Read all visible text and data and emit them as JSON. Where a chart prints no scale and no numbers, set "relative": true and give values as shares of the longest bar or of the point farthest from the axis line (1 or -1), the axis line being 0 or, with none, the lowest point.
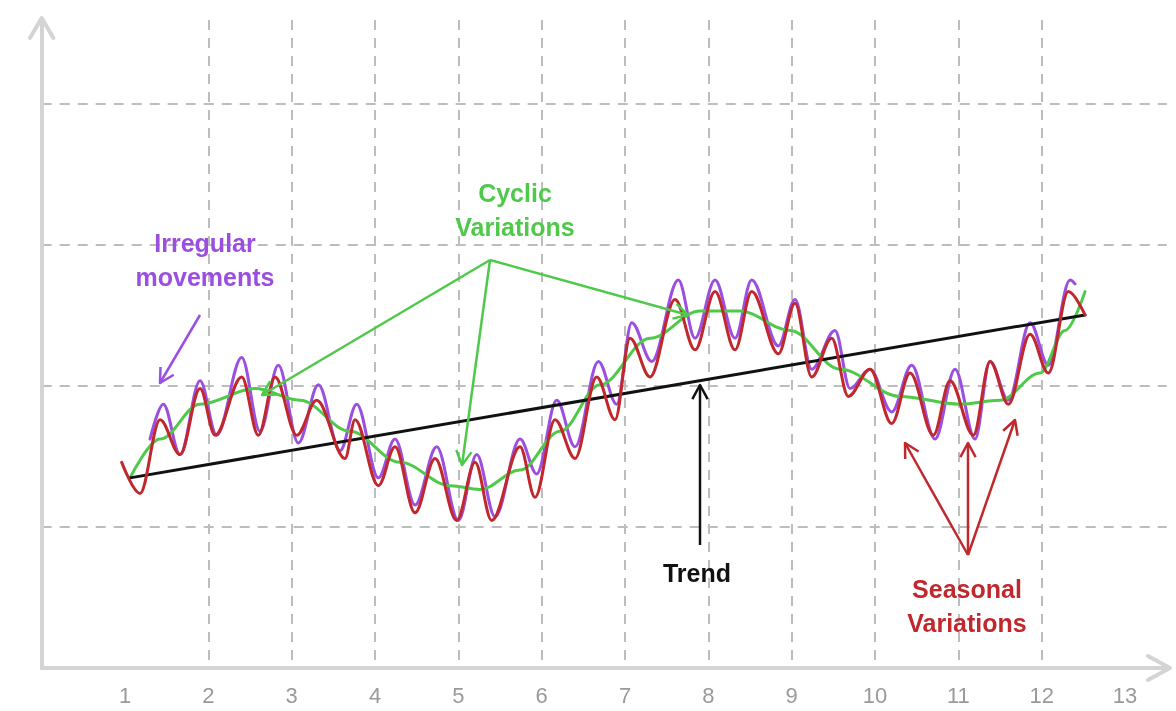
{
  "chart_data": {
    "type": "line",
    "relative": true,
    "xlim": [
      0,
      13.5
    ],
    "xticks": [
      1,
      2,
      3,
      4,
      5,
      6,
      7,
      8,
      9,
      10,
      11,
      12,
      13
    ],
    "tick_labels": "x",
    "grid": true,
    "marker": "none",
    "line_style": "solid",
    "series": [
      {
        "color": "#9b4fe0",
        "x": [
          1.3,
          1.46,
          1.66,
          1.9,
          2.1,
          2.4,
          2.62,
          2.84,
          3.08,
          3.32,
          3.58,
          3.78,
          4.04,
          4.24,
          4.48,
          4.74,
          5.0,
          5.22,
          5.44,
          5.74,
          5.94,
          6.18,
          6.4,
          6.68,
          6.9,
          7.08,
          7.32,
          7.64,
          7.84,
          8.08,
          8.32,
          8.52,
          8.84,
          9.04,
          9.24,
          9.52,
          9.7,
          9.94,
          10.2,
          10.44,
          10.72,
          10.96,
          11.2,
          11.38,
          11.6,
          11.86,
          12.08,
          12.34,
          12.4
        ],
        "values": [
          0.59,
          0.68,
          0.55,
          0.74,
          0.6,
          0.8,
          0.61,
          0.78,
          0.58,
          0.73,
          0.56,
          0.68,
          0.49,
          0.59,
          0.42,
          0.57,
          0.38,
          0.55,
          0.39,
          0.59,
          0.5,
          0.69,
          0.57,
          0.79,
          0.68,
          0.89,
          0.79,
          1.0,
          0.85,
          1.0,
          0.85,
          1.0,
          0.83,
          0.95,
          0.77,
          0.87,
          0.72,
          0.77,
          0.66,
          0.78,
          0.59,
          0.77,
          0.59,
          0.79,
          0.69,
          0.89,
          0.78,
          1.0,
          0.99
        ]
      },
      {
        "color": "#4fc94a",
        "x": [
          1.06,
          1.42,
          1.9,
          2.56,
          3.1,
          3.7,
          4.3,
          4.9,
          5.26,
          5.74,
          6.22,
          6.7,
          7.3,
          7.9,
          8.38,
          8.98,
          9.58,
          10.3,
          11.02,
          11.5,
          11.98,
          12.28,
          12.52
        ],
        "values": [
          0.49,
          0.59,
          0.68,
          0.72,
          0.69,
          0.61,
          0.53,
          0.47,
          0.46,
          0.51,
          0.61,
          0.73,
          0.85,
          0.92,
          0.92,
          0.87,
          0.77,
          0.7,
          0.68,
          0.69,
          0.76,
          0.87,
          0.97
        ]
      },
      {
        "color": "#111111",
        "x": [
          1.06,
          12.52
        ],
        "values": [
          0.49,
          0.91
        ]
      },
      {
        "color": "#c0282d",
        "x": [
          0.96,
          1.18,
          1.42,
          1.66,
          1.9,
          2.08,
          2.4,
          2.6,
          2.8,
          3.06,
          3.3,
          3.64,
          3.76,
          4.04,
          4.24,
          4.48,
          4.72,
          4.98,
          5.2,
          5.4,
          5.74,
          5.92,
          6.16,
          6.4,
          6.66,
          6.88,
          7.06,
          7.3,
          7.6,
          7.84,
          8.08,
          8.32,
          8.52,
          8.84,
          9.04,
          9.24,
          9.48,
          9.68,
          9.94,
          10.2,
          10.42,
          10.7,
          10.9,
          11.18,
          11.38,
          11.6,
          11.86,
          12.08,
          12.32,
          12.52
        ],
        "values": [
          0.53,
          0.45,
          0.64,
          0.55,
          0.72,
          0.6,
          0.75,
          0.6,
          0.75,
          0.6,
          0.69,
          0.54,
          0.64,
          0.47,
          0.57,
          0.4,
          0.54,
          0.38,
          0.53,
          0.38,
          0.57,
          0.44,
          0.64,
          0.54,
          0.75,
          0.64,
          0.85,
          0.75,
          0.95,
          0.82,
          0.97,
          0.82,
          0.97,
          0.81,
          0.94,
          0.75,
          0.85,
          0.7,
          0.77,
          0.63,
          0.76,
          0.6,
          0.74,
          0.6,
          0.79,
          0.68,
          0.86,
          0.76,
          0.97,
          0.91
        ]
      }
    ],
    "annotations": [
      "Irregular movements",
      "Cyclic Variations",
      "Trend",
      "Seasonal Variations"
    ]
  }
}
